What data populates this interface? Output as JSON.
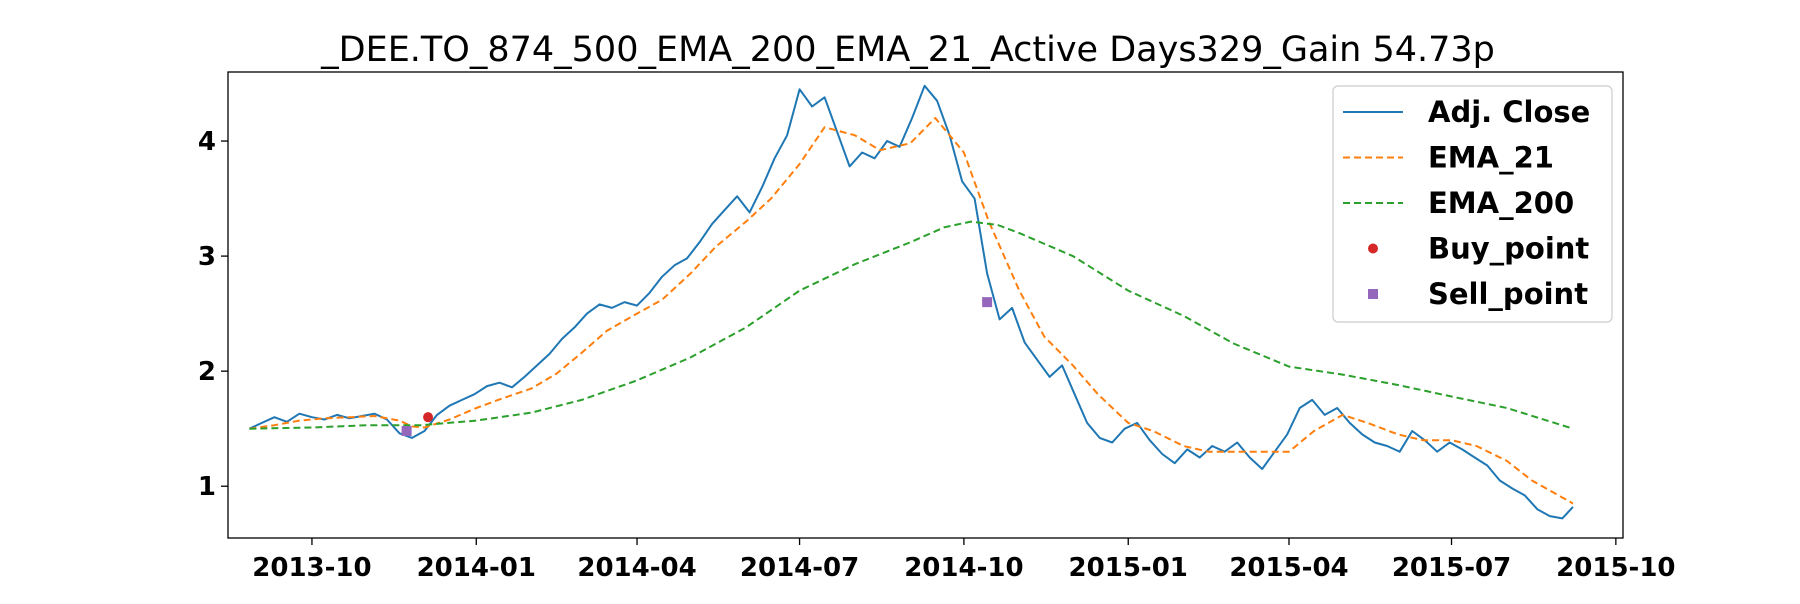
{
  "chart_data": {
    "type": "line",
    "title": "_DEE.TO_874_500_EMA_200_EMA_21_Active Days329_Gain  54.73p",
    "xlabel": "",
    "ylabel": "",
    "x_range": [
      "2013-08-15",
      "2015-10-05"
    ],
    "ylim": [
      0.55,
      4.6
    ],
    "x_ticks": [
      {
        "date": "2013-10-01",
        "label": "2013-10"
      },
      {
        "date": "2014-01-01",
        "label": "2014-01"
      },
      {
        "date": "2014-04-01",
        "label": "2014-04"
      },
      {
        "date": "2014-07-01",
        "label": "2014-07"
      },
      {
        "date": "2014-10-01",
        "label": "2014-10"
      },
      {
        "date": "2015-01-01",
        "label": "2015-01"
      },
      {
        "date": "2015-04-01",
        "label": "2015-04"
      },
      {
        "date": "2015-07-01",
        "label": "2015-07"
      },
      {
        "date": "2015-10-01",
        "label": "2015-10"
      }
    ],
    "y_ticks": [
      1,
      2,
      3,
      4
    ],
    "grid": false,
    "legend_position": "top-right",
    "series": [
      {
        "name": "Adj. Close",
        "color": "#1f77b4",
        "style": "solid",
        "points": [
          [
            "2013-08-27",
            1.5
          ],
          [
            "2013-09-03",
            1.55
          ],
          [
            "2013-09-10",
            1.6
          ],
          [
            "2013-09-17",
            1.56
          ],
          [
            "2013-09-24",
            1.63
          ],
          [
            "2013-10-01",
            1.6
          ],
          [
            "2013-10-08",
            1.58
          ],
          [
            "2013-10-15",
            1.62
          ],
          [
            "2013-10-22",
            1.59
          ],
          [
            "2013-10-29",
            1.61
          ],
          [
            "2013-11-05",
            1.63
          ],
          [
            "2013-11-12",
            1.58
          ],
          [
            "2013-11-19",
            1.46
          ],
          [
            "2013-11-26",
            1.42
          ],
          [
            "2013-12-03",
            1.48
          ],
          [
            "2013-12-10",
            1.62
          ],
          [
            "2013-12-17",
            1.7
          ],
          [
            "2013-12-24",
            1.75
          ],
          [
            "2013-12-31",
            1.8
          ],
          [
            "2014-01-07",
            1.87
          ],
          [
            "2014-01-14",
            1.9
          ],
          [
            "2014-01-21",
            1.86
          ],
          [
            "2014-01-28",
            1.95
          ],
          [
            "2014-02-04",
            2.05
          ],
          [
            "2014-02-11",
            2.15
          ],
          [
            "2014-02-18",
            2.28
          ],
          [
            "2014-02-25",
            2.38
          ],
          [
            "2014-03-04",
            2.5
          ],
          [
            "2014-03-11",
            2.58
          ],
          [
            "2014-03-18",
            2.55
          ],
          [
            "2014-03-25",
            2.6
          ],
          [
            "2014-04-01",
            2.57
          ],
          [
            "2014-04-08",
            2.68
          ],
          [
            "2014-04-15",
            2.82
          ],
          [
            "2014-04-22",
            2.92
          ],
          [
            "2014-04-29",
            2.98
          ],
          [
            "2014-05-06",
            3.12
          ],
          [
            "2014-05-13",
            3.28
          ],
          [
            "2014-05-20",
            3.4
          ],
          [
            "2014-05-27",
            3.52
          ],
          [
            "2014-06-03",
            3.38
          ],
          [
            "2014-06-10",
            3.6
          ],
          [
            "2014-06-17",
            3.85
          ],
          [
            "2014-06-24",
            4.05
          ],
          [
            "2014-07-01",
            4.45
          ],
          [
            "2014-07-08",
            4.3
          ],
          [
            "2014-07-15",
            4.38
          ],
          [
            "2014-07-22",
            4.08
          ],
          [
            "2014-07-29",
            3.78
          ],
          [
            "2014-08-05",
            3.9
          ],
          [
            "2014-08-12",
            3.85
          ],
          [
            "2014-08-19",
            4.0
          ],
          [
            "2014-08-26",
            3.95
          ],
          [
            "2014-09-02",
            4.2
          ],
          [
            "2014-09-09",
            4.48
          ],
          [
            "2014-09-16",
            4.35
          ],
          [
            "2014-09-23",
            4.05
          ],
          [
            "2014-09-30",
            3.65
          ],
          [
            "2014-10-07",
            3.5
          ],
          [
            "2014-10-14",
            2.85
          ],
          [
            "2014-10-21",
            2.45
          ],
          [
            "2014-10-28",
            2.55
          ],
          [
            "2014-11-04",
            2.25
          ],
          [
            "2014-11-11",
            2.1
          ],
          [
            "2014-11-18",
            1.95
          ],
          [
            "2014-11-25",
            2.05
          ],
          [
            "2014-12-02",
            1.8
          ],
          [
            "2014-12-09",
            1.55
          ],
          [
            "2014-12-16",
            1.42
          ],
          [
            "2014-12-23",
            1.38
          ],
          [
            "2014-12-30",
            1.5
          ],
          [
            "2015-01-06",
            1.55
          ],
          [
            "2015-01-13",
            1.4
          ],
          [
            "2015-01-20",
            1.28
          ],
          [
            "2015-01-27",
            1.2
          ],
          [
            "2015-02-03",
            1.32
          ],
          [
            "2015-02-10",
            1.25
          ],
          [
            "2015-02-17",
            1.35
          ],
          [
            "2015-02-24",
            1.3
          ],
          [
            "2015-03-03",
            1.38
          ],
          [
            "2015-03-10",
            1.25
          ],
          [
            "2015-03-17",
            1.15
          ],
          [
            "2015-03-24",
            1.3
          ],
          [
            "2015-03-31",
            1.45
          ],
          [
            "2015-04-07",
            1.68
          ],
          [
            "2015-04-14",
            1.75
          ],
          [
            "2015-04-21",
            1.62
          ],
          [
            "2015-04-28",
            1.68
          ],
          [
            "2015-05-05",
            1.55
          ],
          [
            "2015-05-12",
            1.45
          ],
          [
            "2015-05-19",
            1.38
          ],
          [
            "2015-05-26",
            1.35
          ],
          [
            "2015-06-02",
            1.3
          ],
          [
            "2015-06-09",
            1.48
          ],
          [
            "2015-06-16",
            1.4
          ],
          [
            "2015-06-23",
            1.3
          ],
          [
            "2015-06-30",
            1.38
          ],
          [
            "2015-07-07",
            1.32
          ],
          [
            "2015-07-14",
            1.25
          ],
          [
            "2015-07-21",
            1.18
          ],
          [
            "2015-07-28",
            1.05
          ],
          [
            "2015-08-04",
            0.98
          ],
          [
            "2015-08-11",
            0.92
          ],
          [
            "2015-08-18",
            0.8
          ],
          [
            "2015-08-25",
            0.74
          ],
          [
            "2015-09-01",
            0.72
          ],
          [
            "2015-09-07",
            0.82
          ]
        ]
      },
      {
        "name": "EMA_21",
        "color": "#ff7f0e",
        "style": "dashed",
        "points": [
          [
            "2013-08-27",
            1.5
          ],
          [
            "2013-09-10",
            1.53
          ],
          [
            "2013-09-24",
            1.57
          ],
          [
            "2013-10-08",
            1.59
          ],
          [
            "2013-10-22",
            1.6
          ],
          [
            "2013-11-05",
            1.61
          ],
          [
            "2013-11-19",
            1.57
          ],
          [
            "2013-11-26",
            1.52
          ],
          [
            "2013-12-03",
            1.51
          ],
          [
            "2013-12-17",
            1.58
          ],
          [
            "2014-01-01",
            1.68
          ],
          [
            "2014-01-15",
            1.76
          ],
          [
            "2014-02-01",
            1.85
          ],
          [
            "2014-02-15",
            1.98
          ],
          [
            "2014-03-01",
            2.16
          ],
          [
            "2014-03-15",
            2.35
          ],
          [
            "2014-04-01",
            2.5
          ],
          [
            "2014-04-15",
            2.62
          ],
          [
            "2014-05-01",
            2.85
          ],
          [
            "2014-05-15",
            3.08
          ],
          [
            "2014-06-01",
            3.3
          ],
          [
            "2014-06-15",
            3.5
          ],
          [
            "2014-07-01",
            3.8
          ],
          [
            "2014-07-15",
            4.12
          ],
          [
            "2014-08-01",
            4.05
          ],
          [
            "2014-08-15",
            3.92
          ],
          [
            "2014-09-01",
            3.98
          ],
          [
            "2014-09-15",
            4.2
          ],
          [
            "2014-10-01",
            3.9
          ],
          [
            "2014-10-15",
            3.3
          ],
          [
            "2014-11-01",
            2.7
          ],
          [
            "2014-11-15",
            2.3
          ],
          [
            "2014-12-01",
            2.05
          ],
          [
            "2014-12-15",
            1.8
          ],
          [
            "2015-01-01",
            1.55
          ],
          [
            "2015-01-15",
            1.48
          ],
          [
            "2015-02-01",
            1.35
          ],
          [
            "2015-02-15",
            1.3
          ],
          [
            "2015-03-01",
            1.3
          ],
          [
            "2015-03-15",
            1.3
          ],
          [
            "2015-04-01",
            1.3
          ],
          [
            "2015-04-15",
            1.48
          ],
          [
            "2015-05-01",
            1.62
          ],
          [
            "2015-05-15",
            1.55
          ],
          [
            "2015-06-01",
            1.45
          ],
          [
            "2015-06-15",
            1.4
          ],
          [
            "2015-07-01",
            1.4
          ],
          [
            "2015-07-15",
            1.35
          ],
          [
            "2015-08-01",
            1.22
          ],
          [
            "2015-08-15",
            1.05
          ],
          [
            "2015-09-07",
            0.85
          ]
        ]
      },
      {
        "name": "EMA_200",
        "color": "#2ca02c",
        "style": "dashed",
        "points": [
          [
            "2013-08-27",
            1.5
          ],
          [
            "2013-10-01",
            1.51
          ],
          [
            "2013-11-01",
            1.53
          ],
          [
            "2013-12-01",
            1.53
          ],
          [
            "2014-01-01",
            1.57
          ],
          [
            "2014-02-01",
            1.64
          ],
          [
            "2014-03-01",
            1.75
          ],
          [
            "2014-04-01",
            1.92
          ],
          [
            "2014-05-01",
            2.12
          ],
          [
            "2014-06-01",
            2.38
          ],
          [
            "2014-07-01",
            2.7
          ],
          [
            "2014-08-01",
            2.93
          ],
          [
            "2014-09-01",
            3.12
          ],
          [
            "2014-09-20",
            3.25
          ],
          [
            "2014-10-05",
            3.3
          ],
          [
            "2014-10-20",
            3.27
          ],
          [
            "2014-11-01",
            3.2
          ],
          [
            "2014-12-01",
            3.0
          ],
          [
            "2015-01-01",
            2.7
          ],
          [
            "2015-02-01",
            2.48
          ],
          [
            "2015-03-01",
            2.24
          ],
          [
            "2015-04-01",
            2.04
          ],
          [
            "2015-05-01",
            1.97
          ],
          [
            "2015-06-01",
            1.88
          ],
          [
            "2015-07-01",
            1.78
          ],
          [
            "2015-08-01",
            1.68
          ],
          [
            "2015-09-07",
            1.5
          ]
        ]
      }
    ],
    "markers": [
      {
        "name": "Buy_point",
        "shape": "circle",
        "color": "#d62728",
        "points": [
          [
            "2013-12-05",
            1.6
          ]
        ]
      },
      {
        "name": "Sell_point",
        "shape": "square",
        "color": "#9467bd",
        "points": [
          [
            "2013-11-23",
            1.48
          ],
          [
            "2014-10-14",
            2.6
          ]
        ]
      }
    ]
  }
}
